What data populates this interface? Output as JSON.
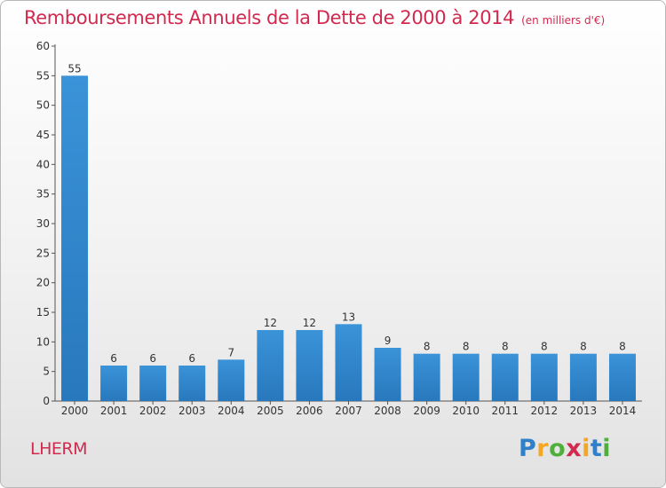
{
  "chart_data": {
    "type": "bar",
    "title": "Remboursements Annuels de la Dette de 2000 à 2014",
    "subtitle": "(en milliers d'€)",
    "categories": [
      "2000",
      "2001",
      "2002",
      "2003",
      "2004",
      "2005",
      "2006",
      "2007",
      "2008",
      "2009",
      "2010",
      "2011",
      "2012",
      "2013",
      "2014"
    ],
    "values": [
      55,
      6,
      6,
      6,
      7,
      12,
      12,
      13,
      9,
      8,
      8,
      8,
      8,
      8,
      8
    ],
    "yticks": [
      0,
      5,
      10,
      15,
      20,
      25,
      30,
      35,
      40,
      45,
      50,
      55,
      60
    ],
    "ylim": [
      0,
      60
    ],
    "xlabel": "",
    "ylabel": "",
    "grid": false,
    "bar_color": "#3b93d8",
    "bar_color_dark": "#2878bd"
  },
  "place_name": "LHERM",
  "logo": {
    "letters": [
      "P",
      "r",
      "o",
      "x",
      "i",
      "t",
      "i"
    ],
    "colors": [
      "#2f80c8",
      "#f5a623",
      "#4fae3c",
      "#d2294f",
      "#f5a623",
      "#2f80c8",
      "#4fae3c"
    ]
  }
}
